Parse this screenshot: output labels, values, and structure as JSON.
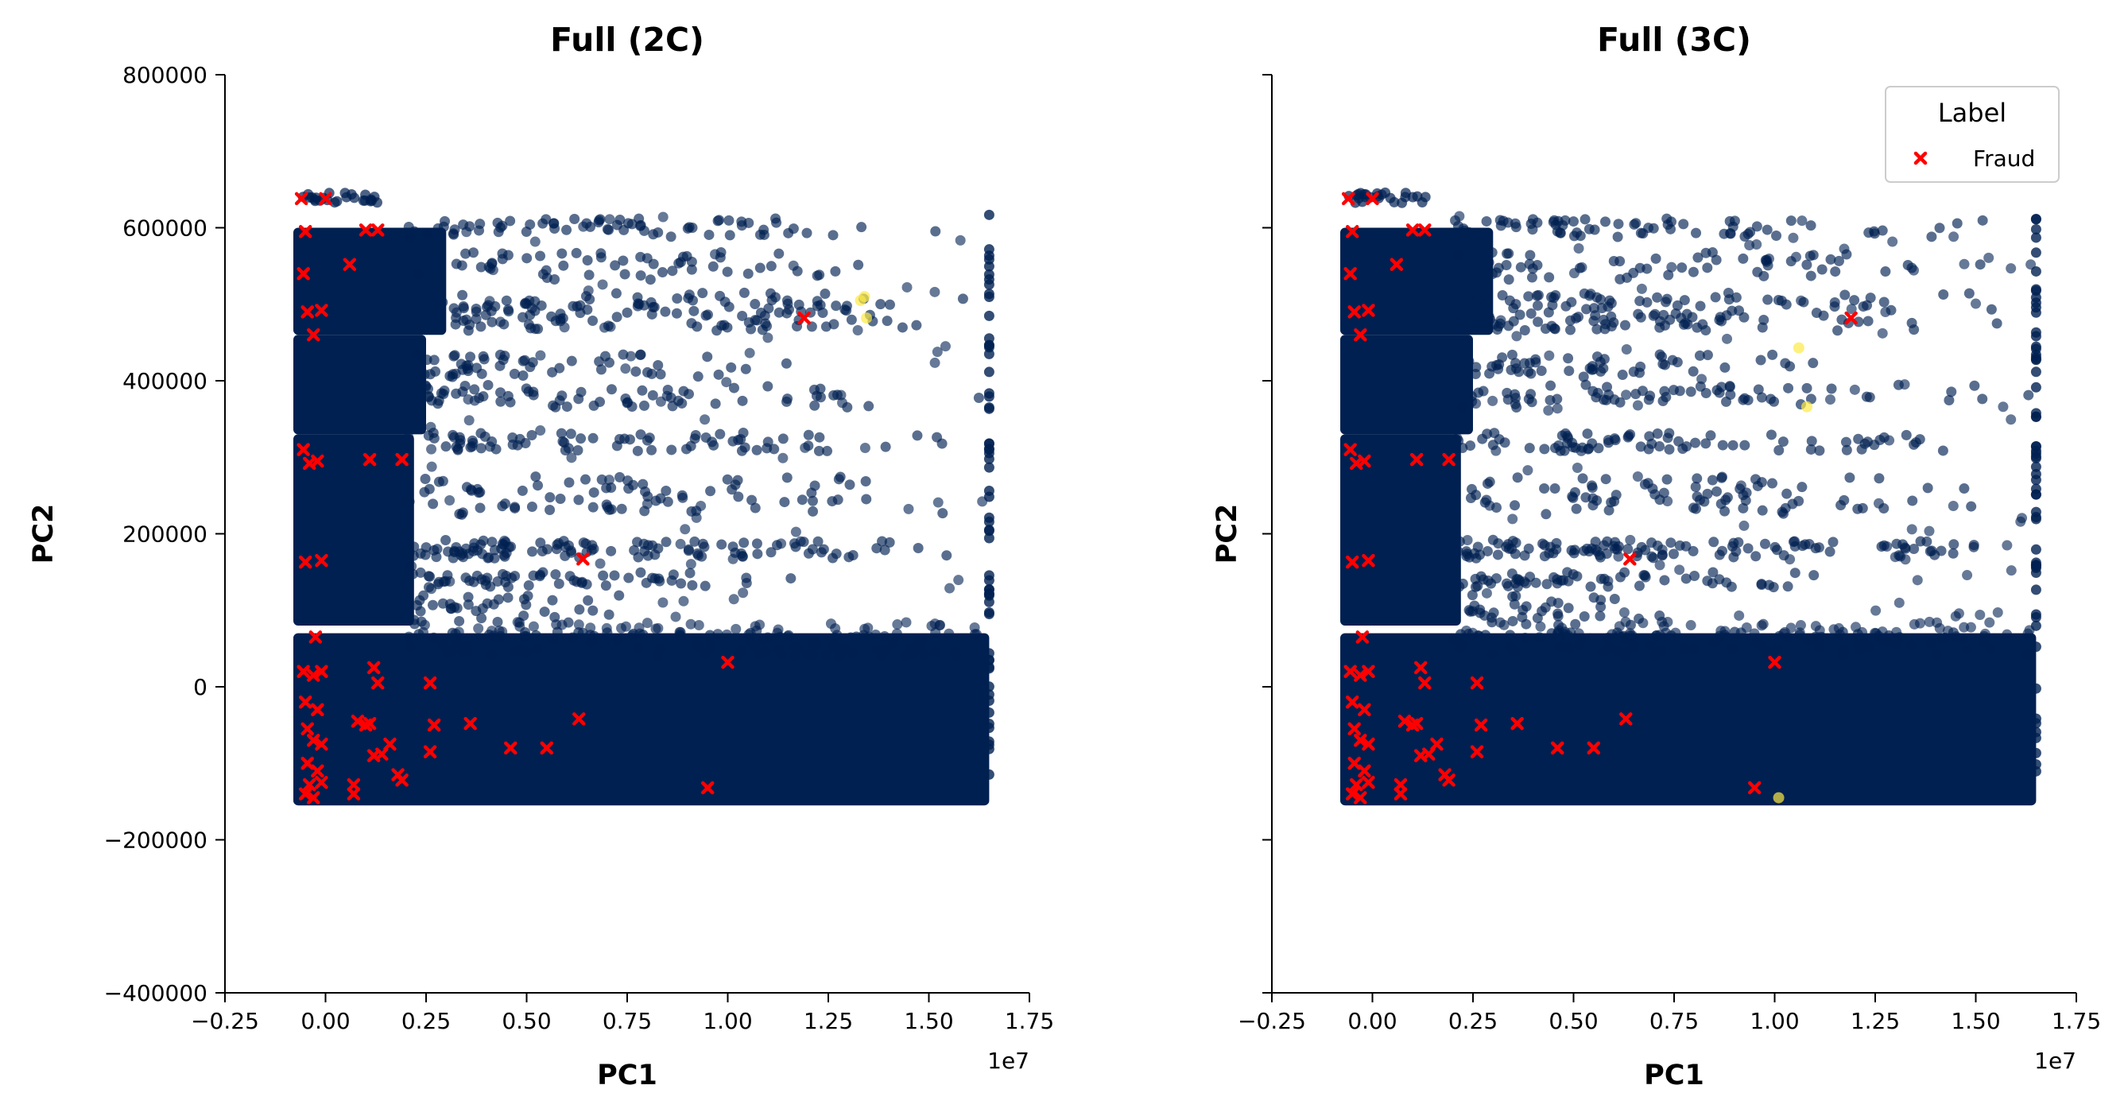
{
  "colors": {
    "cluster_main": "#002051",
    "cluster_other": "#fdea45",
    "fraud": "#ff0000",
    "axis": "#000000"
  },
  "chart_data": [
    {
      "type": "scatter",
      "title": "Full (2C)",
      "xlabel": "PC1",
      "ylabel": "PC2",
      "x_offset_text": "1e7",
      "xlim": [
        -2500000,
        17500000
      ],
      "ylim": [
        -400000,
        800000
      ],
      "xticks": [
        -2500000,
        0,
        2500000,
        5000000,
        7500000,
        10000000,
        12500000,
        15000000,
        17500000
      ],
      "xtick_labels": [
        "−0.25",
        "0.00",
        "0.25",
        "0.50",
        "0.75",
        "1.00",
        "1.25",
        "1.50",
        "1.75"
      ],
      "yticks": [
        -400000,
        -200000,
        0,
        200000,
        400000,
        600000,
        800000
      ],
      "ytick_labels": [
        "−400000",
        "−200000",
        "0",
        "200000",
        "400000",
        "600000",
        "800000"
      ],
      "show_ytick_labels": true,
      "legend": null,
      "cluster_bands": [
        {
          "name": "band-bottom-wide",
          "x": [
            -800000,
            16500000
          ],
          "y": [
            -155000,
            70000
          ]
        },
        {
          "name": "band-mid",
          "x": [
            -800000,
            2200000
          ],
          "y": [
            80000,
            330000
          ]
        },
        {
          "name": "band-upper",
          "x": [
            -800000,
            2500000
          ],
          "y": [
            330000,
            460000
          ]
        },
        {
          "name": "band-top",
          "x": [
            -800000,
            3000000
          ],
          "y": [
            460000,
            600000
          ]
        }
      ],
      "highlight_points": [
        [
          13400000,
          510000
        ],
        [
          13300000,
          505000
        ],
        [
          13450000,
          482000
        ]
      ],
      "fraud_points": [
        [
          -600000,
          638000
        ],
        [
          0,
          638000
        ],
        [
          -500000,
          595000
        ],
        [
          -550000,
          540000
        ],
        [
          -450000,
          490000
        ],
        [
          -300000,
          460000
        ],
        [
          -100000,
          492000
        ],
        [
          600000,
          552000
        ],
        [
          1000000,
          597000
        ],
        [
          1300000,
          597000
        ],
        [
          -550000,
          310000
        ],
        [
          -400000,
          292000
        ],
        [
          -200000,
          295000
        ],
        [
          1100000,
          297000
        ],
        [
          1900000,
          297000
        ],
        [
          -500000,
          163000
        ],
        [
          -100000,
          165000
        ],
        [
          6400000,
          167000
        ],
        [
          11900000,
          482000
        ],
        [
          -250000,
          65000
        ],
        [
          10000000,
          32000
        ],
        [
          -550000,
          20000
        ],
        [
          -300000,
          15000
        ],
        [
          -100000,
          20000
        ],
        [
          1200000,
          25000
        ],
        [
          2600000,
          5000
        ],
        [
          1300000,
          5000
        ],
        [
          -500000,
          -20000
        ],
        [
          -200000,
          -30000
        ],
        [
          800000,
          -45000
        ],
        [
          1000000,
          -50000
        ],
        [
          1100000,
          -48000
        ],
        [
          -450000,
          -55000
        ],
        [
          -300000,
          -70000
        ],
        [
          -100000,
          -75000
        ],
        [
          2700000,
          -50000
        ],
        [
          3600000,
          -48000
        ],
        [
          6300000,
          -42000
        ],
        [
          1600000,
          -75000
        ],
        [
          1200000,
          -90000
        ],
        [
          1400000,
          -88000
        ],
        [
          2600000,
          -85000
        ],
        [
          4600000,
          -80000
        ],
        [
          5500000,
          -80000
        ],
        [
          -450000,
          -100000
        ],
        [
          -200000,
          -110000
        ],
        [
          1800000,
          -115000
        ],
        [
          1900000,
          -122000
        ],
        [
          -400000,
          -128000
        ],
        [
          -100000,
          -125000
        ],
        [
          700000,
          -128000
        ],
        [
          -500000,
          -140000
        ],
        [
          700000,
          -140000
        ],
        [
          9500000,
          -132000
        ],
        [
          -300000,
          -145000
        ]
      ]
    },
    {
      "type": "scatter",
      "title": "Full (3C)",
      "xlabel": "PC1",
      "ylabel": "PC2",
      "x_offset_text": "1e7",
      "xlim": [
        -2500000,
        17500000
      ],
      "ylim": [
        -400000,
        800000
      ],
      "xticks": [
        -2500000,
        0,
        2500000,
        5000000,
        7500000,
        10000000,
        12500000,
        15000000,
        17500000
      ],
      "xtick_labels": [
        "−0.25",
        "0.00",
        "0.25",
        "0.50",
        "0.75",
        "1.00",
        "1.25",
        "1.50",
        "1.75"
      ],
      "yticks": [
        -400000,
        -200000,
        0,
        200000,
        400000,
        600000,
        800000
      ],
      "show_ytick_labels": false,
      "legend": {
        "title": "Label",
        "entries": [
          "Fraud"
        ],
        "placement": "top-right"
      },
      "cluster_bands": [
        {
          "name": "band-bottom-wide",
          "x": [
            -800000,
            16500000
          ],
          "y": [
            -155000,
            70000
          ]
        },
        {
          "name": "band-mid",
          "x": [
            -800000,
            2200000
          ],
          "y": [
            80000,
            330000
          ]
        },
        {
          "name": "band-upper",
          "x": [
            -800000,
            2500000
          ],
          "y": [
            330000,
            460000
          ]
        },
        {
          "name": "band-top",
          "x": [
            -800000,
            3000000
          ],
          "y": [
            460000,
            600000
          ]
        }
      ],
      "highlight_points": [
        [
          10600000,
          443000
        ],
        [
          10800000,
          366000
        ],
        [
          10100000,
          -145000
        ]
      ],
      "fraud_points": [
        [
          -600000,
          638000
        ],
        [
          0,
          638000
        ],
        [
          -500000,
          595000
        ],
        [
          -550000,
          540000
        ],
        [
          -450000,
          490000
        ],
        [
          -300000,
          460000
        ],
        [
          -100000,
          492000
        ],
        [
          600000,
          552000
        ],
        [
          1000000,
          597000
        ],
        [
          1300000,
          597000
        ],
        [
          -550000,
          310000
        ],
        [
          -400000,
          292000
        ],
        [
          -200000,
          295000
        ],
        [
          1100000,
          297000
        ],
        [
          1900000,
          297000
        ],
        [
          -500000,
          163000
        ],
        [
          -100000,
          165000
        ],
        [
          6400000,
          167000
        ],
        [
          11900000,
          482000
        ],
        [
          -250000,
          65000
        ],
        [
          10000000,
          32000
        ],
        [
          -550000,
          20000
        ],
        [
          -300000,
          15000
        ],
        [
          -100000,
          20000
        ],
        [
          1200000,
          25000
        ],
        [
          2600000,
          5000
        ],
        [
          1300000,
          5000
        ],
        [
          -500000,
          -20000
        ],
        [
          -200000,
          -30000
        ],
        [
          800000,
          -45000
        ],
        [
          1000000,
          -50000
        ],
        [
          1100000,
          -48000
        ],
        [
          -450000,
          -55000
        ],
        [
          -300000,
          -70000
        ],
        [
          -100000,
          -75000
        ],
        [
          2700000,
          -50000
        ],
        [
          3600000,
          -48000
        ],
        [
          6300000,
          -42000
        ],
        [
          1600000,
          -75000
        ],
        [
          1200000,
          -90000
        ],
        [
          1400000,
          -88000
        ],
        [
          2600000,
          -85000
        ],
        [
          4600000,
          -80000
        ],
        [
          5500000,
          -80000
        ],
        [
          -450000,
          -100000
        ],
        [
          -200000,
          -110000
        ],
        [
          1800000,
          -115000
        ],
        [
          1900000,
          -122000
        ],
        [
          -400000,
          -128000
        ],
        [
          -100000,
          -125000
        ],
        [
          700000,
          -128000
        ],
        [
          -500000,
          -140000
        ],
        [
          700000,
          -140000
        ],
        [
          9500000,
          -132000
        ],
        [
          -300000,
          -145000
        ]
      ]
    }
  ]
}
